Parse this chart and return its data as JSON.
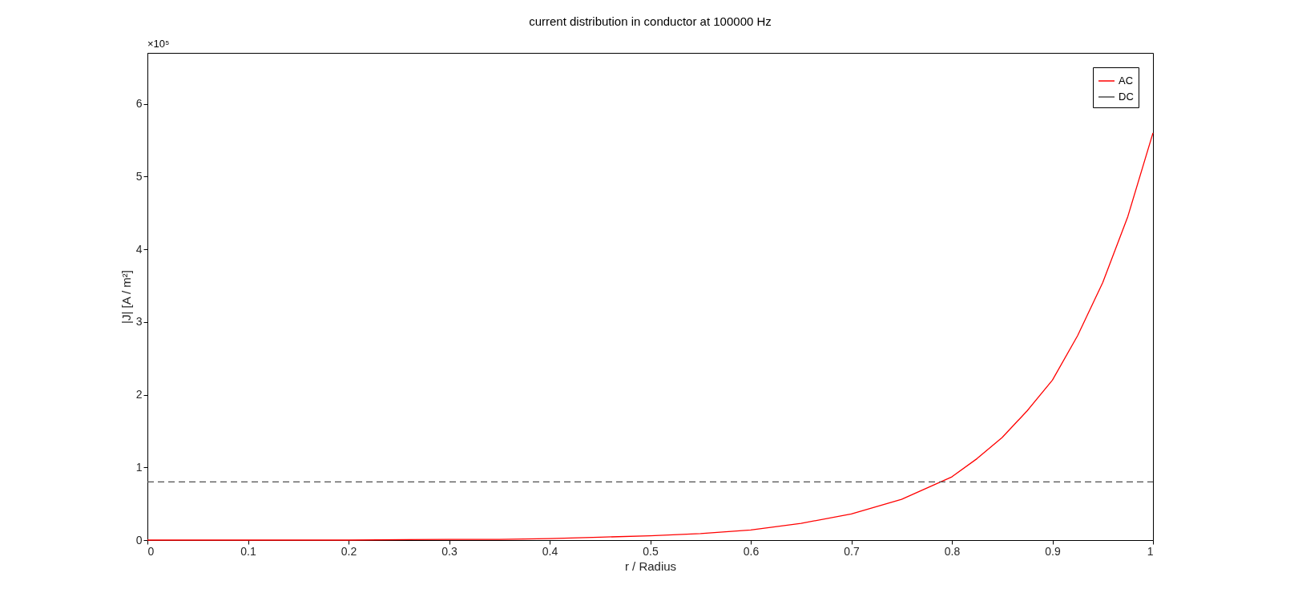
{
  "chart_data": {
    "type": "line",
    "title": "current distribution in conductor at 100000 Hz",
    "xlabel": "r / Radius",
    "ylabel": "|J|  [A / m²]",
    "annotations": [
      "×10⁵"
    ],
    "series": [
      {
        "name": "AC",
        "color": "#ff0000",
        "line_style": "solid",
        "x": [
          0,
          0.1,
          0.2,
          0.3,
          0.35,
          0.4,
          0.45,
          0.5,
          0.55,
          0.6,
          0.65,
          0.7,
          0.75,
          0.8,
          0.825,
          0.85,
          0.875,
          0.9,
          0.925,
          0.95,
          0.975,
          1
        ],
        "values": [
          0,
          0,
          0,
          0.01,
          0.01,
          0.02,
          0.04,
          0.06,
          0.09,
          0.14,
          0.23,
          0.36,
          0.56,
          0.87,
          1.12,
          1.41,
          1.78,
          2.2,
          2.81,
          3.54,
          4.45,
          5.6
        ]
      },
      {
        "name": "DC",
        "color": "#4d4d4d",
        "line_style": "dashed",
        "x": [
          0,
          1
        ],
        "values": [
          0.8,
          0.8
        ]
      }
    ],
    "xlim": [
      0,
      1
    ],
    "xticks": [
      0,
      0.1,
      0.2,
      0.3,
      0.4,
      0.5,
      0.6,
      0.7,
      0.8,
      0.9,
      1
    ],
    "ylim": [
      0,
      6.7
    ],
    "yticks": [
      0,
      1,
      2,
      3,
      4,
      5,
      6
    ],
    "grid": false,
    "legend": "top right",
    "marker": "none"
  }
}
